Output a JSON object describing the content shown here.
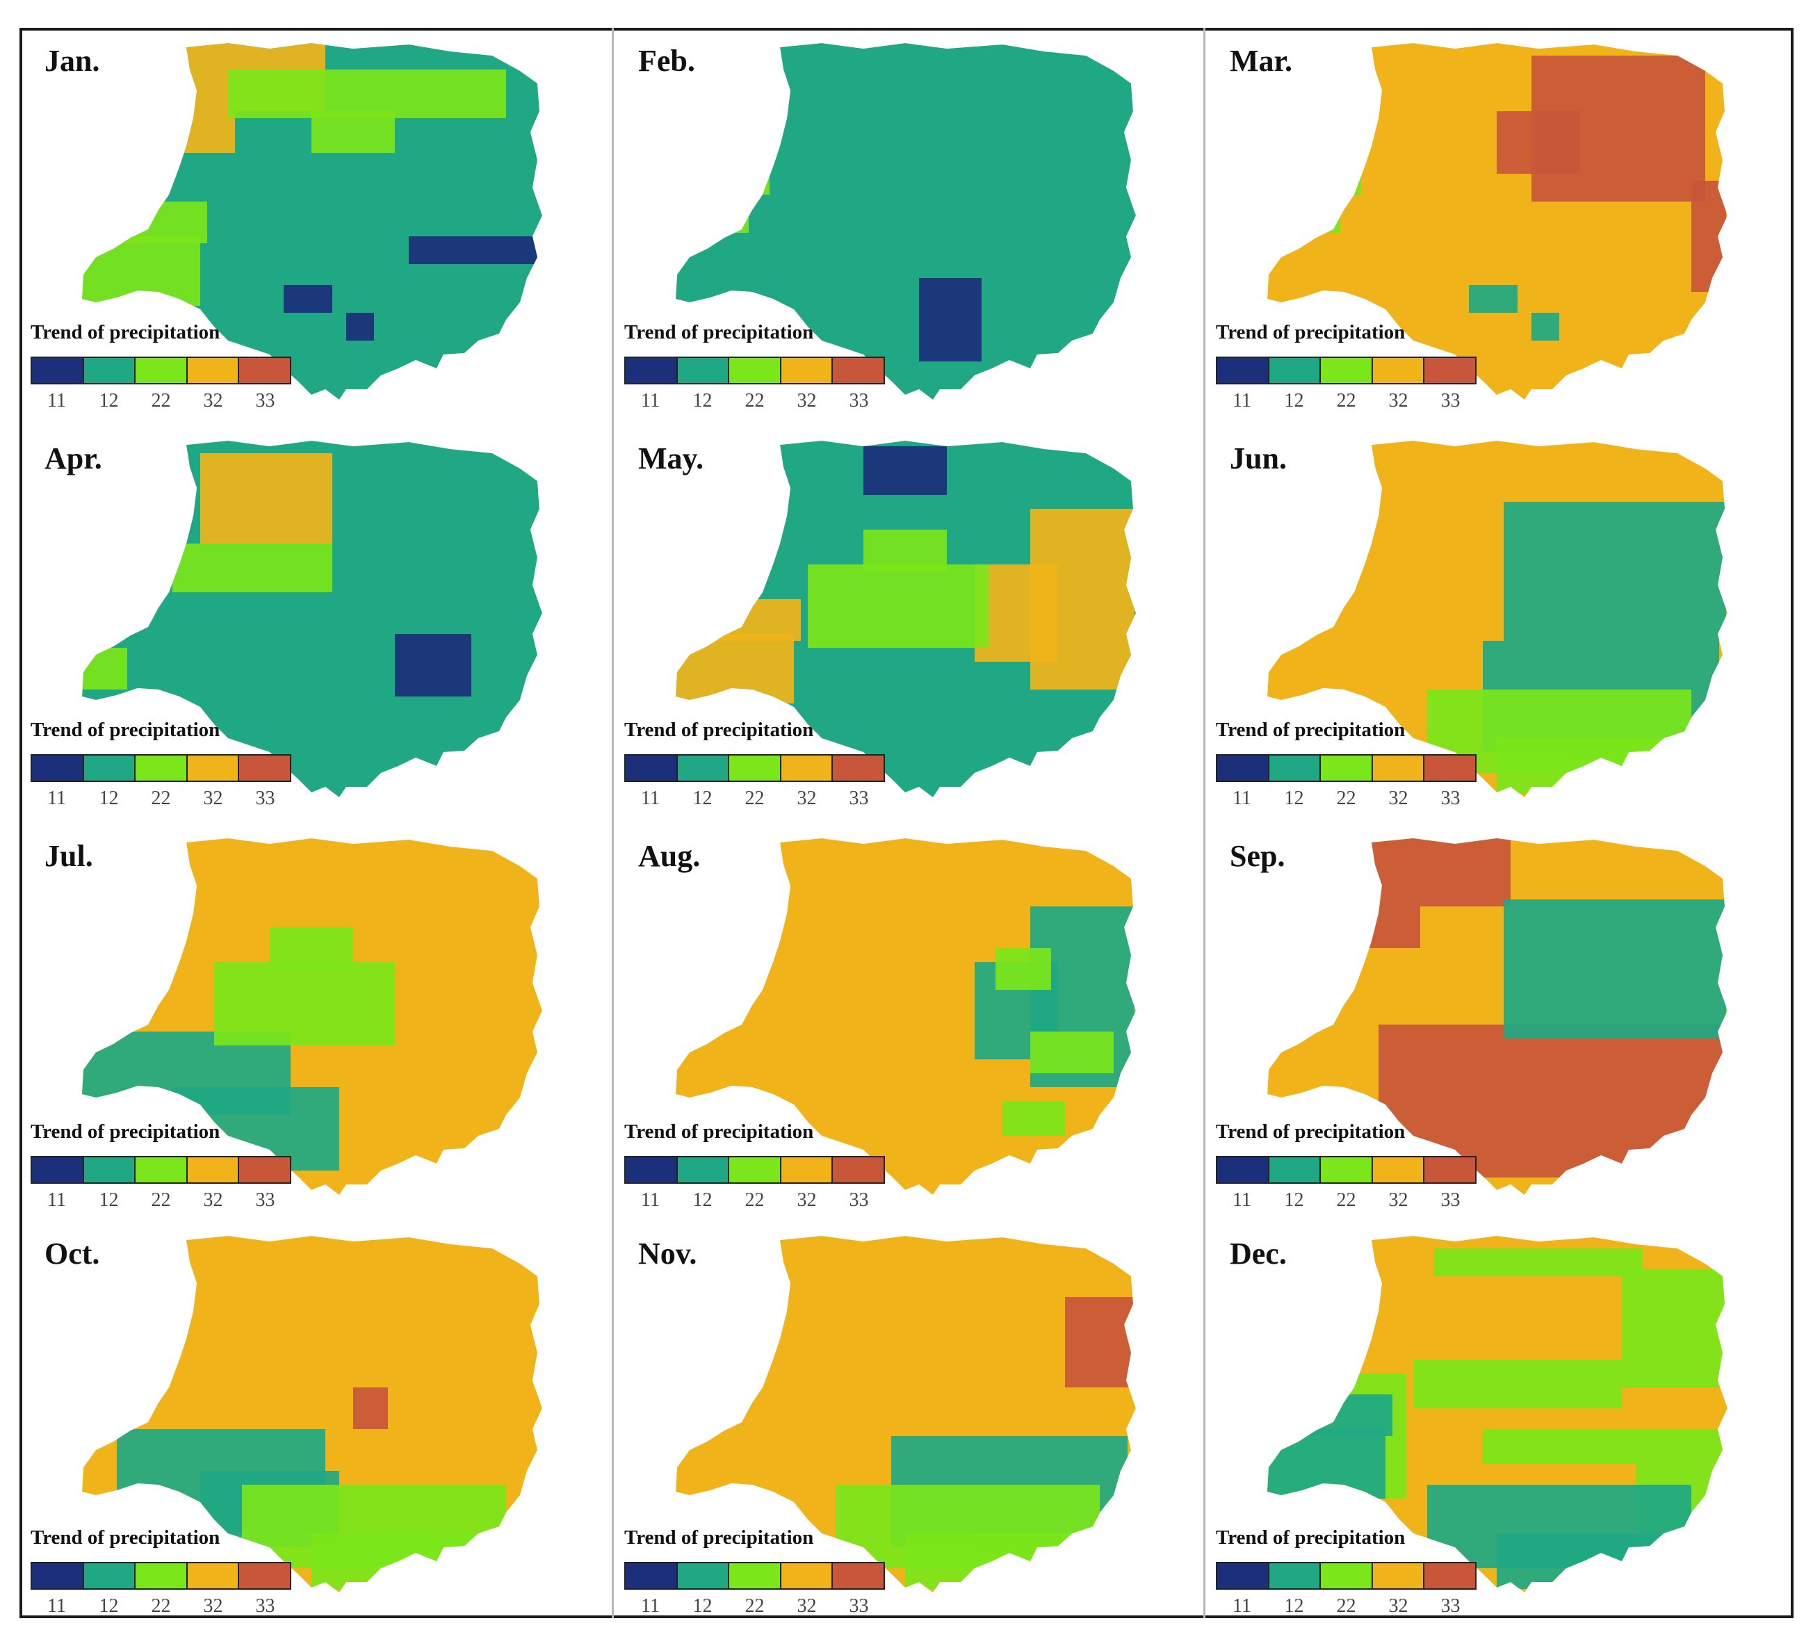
{
  "legend": {
    "title": "Trend of precipitation",
    "classes": [
      {
        "label": "11",
        "color": "#1b2f7a"
      },
      {
        "label": "12",
        "color": "#1fa883"
      },
      {
        "label": "22",
        "color": "#7be61a"
      },
      {
        "label": "32",
        "color": "#f0b41a"
      },
      {
        "label": "33",
        "color": "#c8563a"
      }
    ]
  },
  "panels": [
    {
      "month": "Jan.",
      "base_class": "12",
      "patches": [
        {
          "cls": "22",
          "area": "west-arm"
        },
        {
          "cls": "32",
          "area": "north-west"
        },
        {
          "cls": "22",
          "area": "north"
        },
        {
          "cls": "11",
          "area": "east-band"
        },
        {
          "cls": "11",
          "area": "south-speck"
        }
      ]
    },
    {
      "month": "Feb.",
      "base_class": "12",
      "patches": [
        {
          "cls": "22",
          "area": "west-speck"
        },
        {
          "cls": "11",
          "area": "south-lobe"
        }
      ]
    },
    {
      "month": "Mar.",
      "base_class": "32",
      "patches": [
        {
          "cls": "33",
          "area": "north-east"
        },
        {
          "cls": "33",
          "area": "east-edge"
        },
        {
          "cls": "12",
          "area": "south-speck"
        },
        {
          "cls": "22",
          "area": "west-speck"
        }
      ]
    },
    {
      "month": "Apr.",
      "base_class": "12",
      "patches": [
        {
          "cls": "32",
          "area": "north-west-blob"
        },
        {
          "cls": "22",
          "area": "center-band"
        },
        {
          "cls": "11",
          "area": "south-east-blob"
        },
        {
          "cls": "22",
          "area": "west-arm-tip"
        }
      ]
    },
    {
      "month": "May.",
      "base_class": "12",
      "patches": [
        {
          "cls": "11",
          "area": "north-block"
        },
        {
          "cls": "32",
          "area": "west-arm"
        },
        {
          "cls": "32",
          "area": "east"
        },
        {
          "cls": "22",
          "area": "center"
        }
      ]
    },
    {
      "month": "Jun.",
      "base_class": "32",
      "patches": [
        {
          "cls": "12",
          "area": "north-east-blob"
        },
        {
          "cls": "12",
          "area": "south-east"
        },
        {
          "cls": "22",
          "area": "south"
        }
      ]
    },
    {
      "month": "Jul.",
      "base_class": "32",
      "patches": [
        {
          "cls": "12",
          "area": "west-south"
        },
        {
          "cls": "22",
          "area": "center"
        }
      ]
    },
    {
      "month": "Aug.",
      "base_class": "32",
      "patches": [
        {
          "cls": "12",
          "area": "east"
        },
        {
          "cls": "22",
          "area": "east-mix"
        }
      ]
    },
    {
      "month": "Sep.",
      "base_class": "32",
      "patches": [
        {
          "cls": "33",
          "area": "north-west"
        },
        {
          "cls": "33",
          "area": "south-band"
        },
        {
          "cls": "12",
          "area": "north-east-blob"
        }
      ]
    },
    {
      "month": "Oct.",
      "base_class": "32",
      "patches": [
        {
          "cls": "12",
          "area": "south-west"
        },
        {
          "cls": "22",
          "area": "south"
        },
        {
          "cls": "33",
          "area": "center-speck"
        }
      ]
    },
    {
      "month": "Nov.",
      "base_class": "32",
      "patches": [
        {
          "cls": "33",
          "area": "north-east-corner"
        },
        {
          "cls": "12",
          "area": "south-east"
        },
        {
          "cls": "22",
          "area": "south"
        }
      ]
    },
    {
      "month": "Dec.",
      "base_class": "32",
      "patches": [
        {
          "cls": "22",
          "area": "edge-ring"
        },
        {
          "cls": "12",
          "area": "west-arm"
        },
        {
          "cls": "12",
          "area": "south"
        },
        {
          "cls": "22",
          "area": "center-mix"
        }
      ]
    }
  ]
}
